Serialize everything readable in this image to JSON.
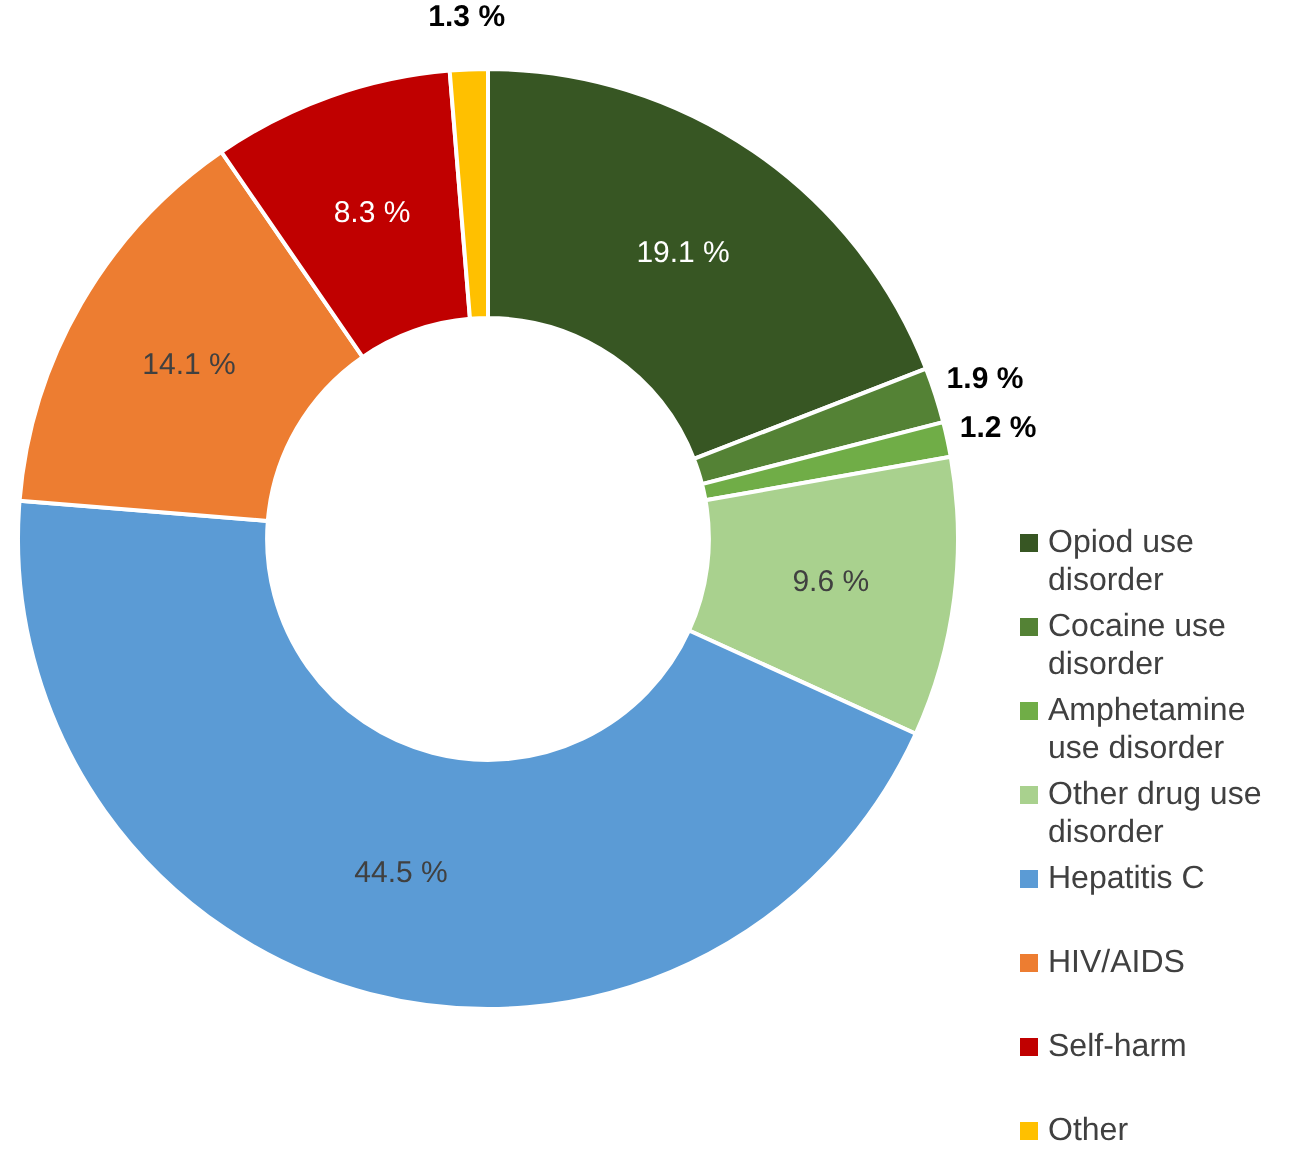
{
  "chart_data": {
    "type": "donut",
    "categories": [
      "Opiod use disorder",
      "Cocaine use disorder",
      "Amphetamine use disorder",
      "Other drug use disorder",
      "Hepatitis C",
      "HIV/AIDS",
      "Self-harm",
      "Other"
    ],
    "values": [
      19.1,
      1.9,
      1.2,
      9.6,
      44.5,
      14.1,
      8.3,
      1.3
    ],
    "value_labels": [
      "19.1 %",
      "1.9 %",
      "1.2 %",
      "9.6 %",
      "44.5 %",
      "14.1 %",
      "8.3 %",
      "1.3 %"
    ],
    "colors": [
      "#375623",
      "#548235",
      "#70ad47",
      "#a9d18e",
      "#5b9bd5",
      "#ed7d31",
      "#c00000",
      "#ffc000"
    ],
    "legend": "right"
  }
}
